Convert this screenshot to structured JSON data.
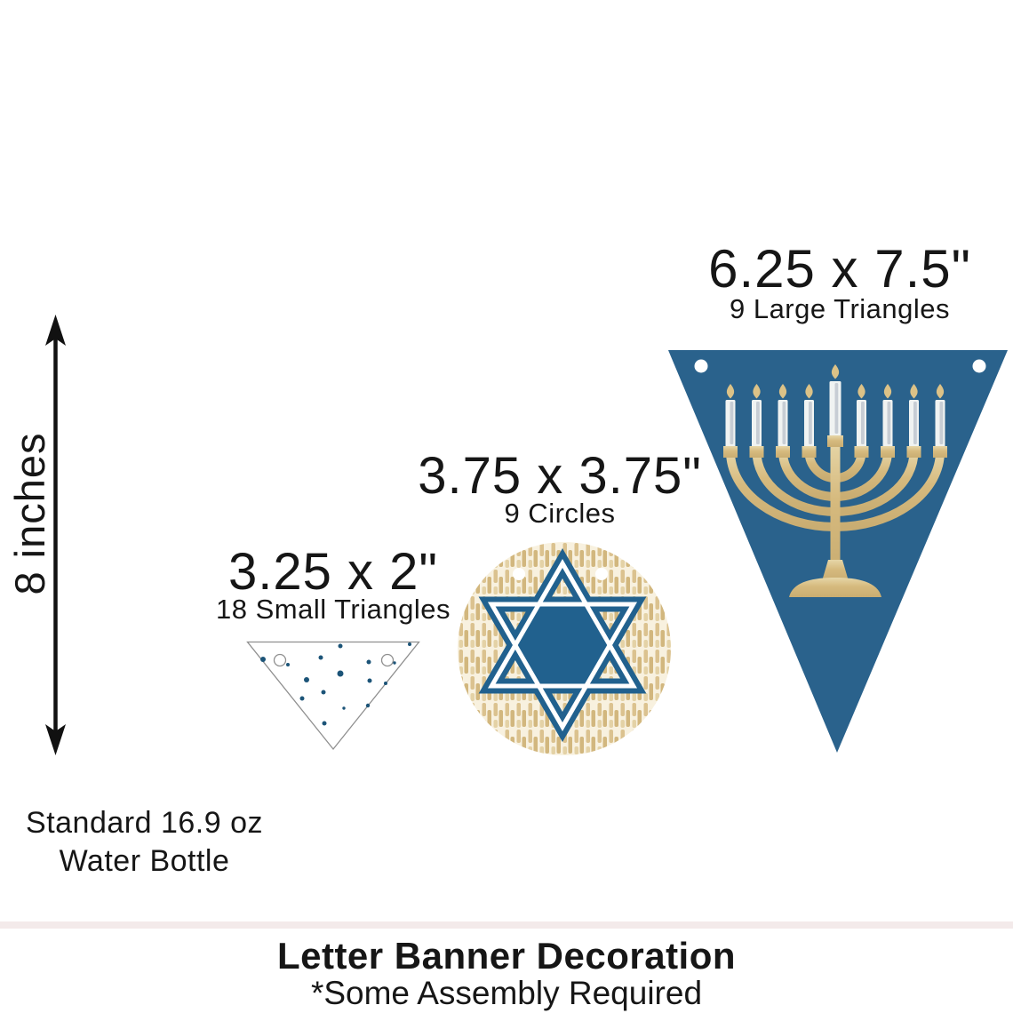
{
  "measure_arrow": {
    "label": "8 inches"
  },
  "reference_object": {
    "line1": "Standard 16.9 oz",
    "line2": "Water Bottle"
  },
  "pieces": {
    "small_triangle": {
      "size": "3.25 x 2\"",
      "quantity": "18 Small Triangles"
    },
    "circle": {
      "size": "3.75 x 3.75\"",
      "quantity": "9 Circles"
    },
    "large_triangle": {
      "size": "6.25 x 7.5\"",
      "quantity": "9 Large Triangles"
    }
  },
  "footer": {
    "title": "Letter Banner Decoration",
    "note": "*Some Assembly Required"
  },
  "colors": {
    "banner_blue": "#2a628c",
    "star_blue": "#21618e",
    "dot_blue": "#1c5478",
    "gold": "#d6ba7e",
    "gold_light": "#e6d6a8",
    "gold_dark": "#c9ad72",
    "candle_white": "#f0f3f2",
    "candle_silver": "#c2c9d0",
    "flame_gold": "#dcc287",
    "circle_cream": "#f8f1df",
    "dash_tan": "#d8bd87",
    "outline_gray": "#8f8f8f",
    "band_pink": "#f3eaea",
    "text": "#161616"
  },
  "decor": {
    "small_triangle_dots": [
      [
        19,
        21,
        3
      ],
      [
        47,
        27,
        2
      ],
      [
        84,
        19,
        2.5
      ],
      [
        106,
        6,
        2.5
      ],
      [
        138,
        24,
        2.5
      ],
      [
        167,
        25,
        1.7
      ],
      [
        184,
        4,
        2
      ],
      [
        106,
        37,
        3.5
      ],
      [
        68,
        44,
        3
      ],
      [
        139,
        45,
        2.5
      ],
      [
        157,
        48,
        2
      ],
      [
        87,
        58,
        2.5
      ],
      [
        63,
        65,
        2.5
      ],
      [
        110,
        76,
        1.7
      ],
      [
        137,
        73,
        2.2
      ],
      [
        88,
        93,
        2.5
      ]
    ]
  }
}
